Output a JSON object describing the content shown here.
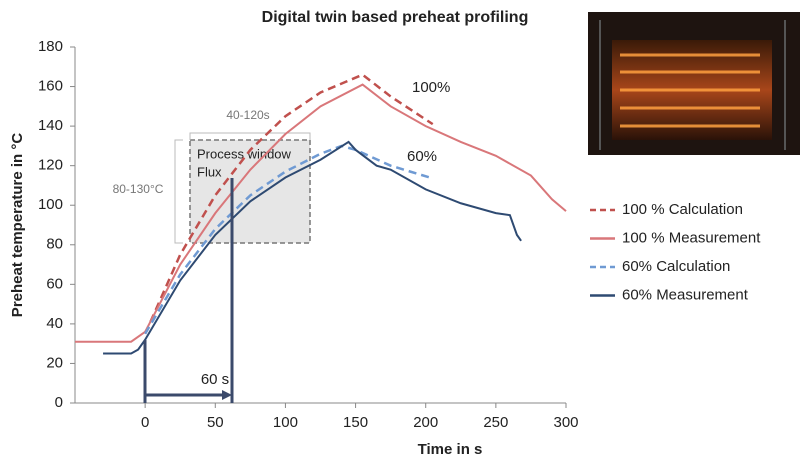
{
  "chart_data": {
    "type": "line",
    "title": "Digital twin based preheat profiling",
    "x_label": "Time in s",
    "y_label": "Preheat temperature in °C",
    "xlim": [
      -50,
      300
    ],
    "xticks": [
      0,
      50,
      100,
      150,
      200,
      250,
      300
    ],
    "ylim": [
      0,
      180
    ],
    "yticks": [
      0,
      20,
      40,
      60,
      80,
      100,
      120,
      140,
      160,
      180
    ],
    "grid": false,
    "legend": "right",
    "series": [
      {
        "name": "100 % Calculation",
        "color": "#c0504d",
        "style": "dashed",
        "x": [
          0,
          25,
          50,
          75,
          100,
          125,
          155,
          175,
          205
        ],
        "values": [
          35,
          75,
          105,
          128,
          145,
          157,
          166,
          155,
          141
        ]
      },
      {
        "name": "100 % Measurement",
        "color": "#d9777a",
        "style": "solid",
        "x": [
          -50,
          -10,
          0,
          25,
          50,
          75,
          100,
          125,
          155,
          175,
          200,
          225,
          250,
          275,
          290,
          300
        ],
        "values": [
          31,
          31,
          36,
          70,
          96,
          118,
          136,
          150,
          161,
          150,
          140,
          132,
          125,
          115,
          103,
          97
        ]
      },
      {
        "name": "60% Calculation",
        "color": "#6f9ad3",
        "style": "dashed",
        "x": [
          0,
          25,
          50,
          75,
          100,
          125,
          140,
          150,
          175,
          203
        ],
        "values": [
          35,
          65,
          88,
          105,
          117,
          126,
          130,
          128,
          120,
          114
        ]
      },
      {
        "name": "60% Measurement",
        "color": "#2e4a72",
        "style": "solid",
        "x": [
          -30,
          -10,
          -5,
          0,
          25,
          50,
          75,
          100,
          125,
          145,
          150,
          165,
          175,
          200,
          225,
          250,
          260,
          265,
          268
        ],
        "values": [
          25,
          25,
          27,
          32,
          62,
          85,
          102,
          114,
          123,
          132,
          128,
          120,
          118,
          108,
          101,
          96,
          95,
          85,
          82
        ]
      }
    ],
    "annotations": [
      "100%",
      "60%",
      "Process window",
      "Flux",
      "40-120s",
      "80-130°C",
      "60 s"
    ]
  }
}
